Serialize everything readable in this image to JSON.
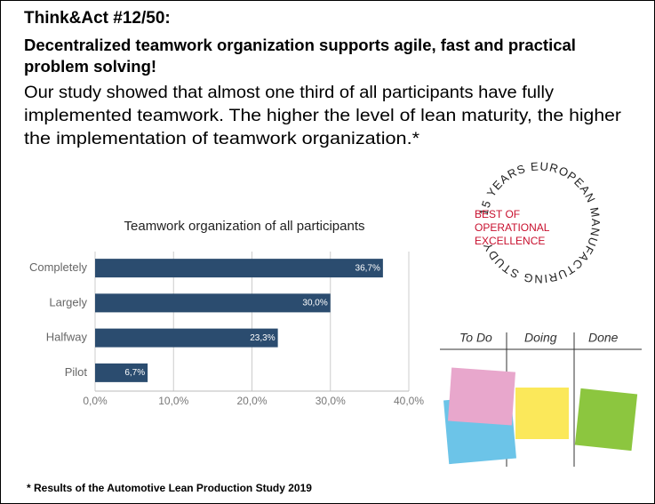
{
  "header": {
    "title": "Think&Act #12/50:",
    "headline": [
      "Decentralized teamwork organization supports agile, fast and practical",
      "problem solving!"
    ],
    "body": [
      "Our study showed that almost one third of all participants have fully",
      "implemented teamwork. The higher the level of lean maturity, the higher",
      "the implementation of teamwork organization.*"
    ]
  },
  "chart_data": {
    "type": "barh",
    "title": "Teamwork organization of all participants",
    "categories": [
      "Completely",
      "Largely",
      "Halfway",
      "Pilot"
    ],
    "values": [
      36.7,
      30.0,
      23.3,
      6.7
    ],
    "value_labels": [
      "36,7%",
      "30,0%",
      "23,3%",
      "6,7%"
    ],
    "color": "#2b4c6f",
    "xlim": [
      0,
      40
    ],
    "xticks": [
      {
        "value": 0,
        "label": "0,0%"
      },
      {
        "value": 10,
        "label": "10,0%"
      },
      {
        "value": 20,
        "label": "20,0%"
      },
      {
        "value": 30,
        "label": "30,0%"
      },
      {
        "value": 40,
        "label": "40,0%"
      }
    ],
    "grid": true
  },
  "badge": {
    "ring": "15 YEARS EUROPEAN MANUFACTURING STUDY",
    "lines": [
      "BEST OF",
      "OPERATIONAL",
      "EXCELLENCE"
    ]
  },
  "board": {
    "columns": [
      "To Do",
      "Doing",
      "Done"
    ]
  },
  "footnote": "* Results of the Automotive Lean Production Study 2019"
}
